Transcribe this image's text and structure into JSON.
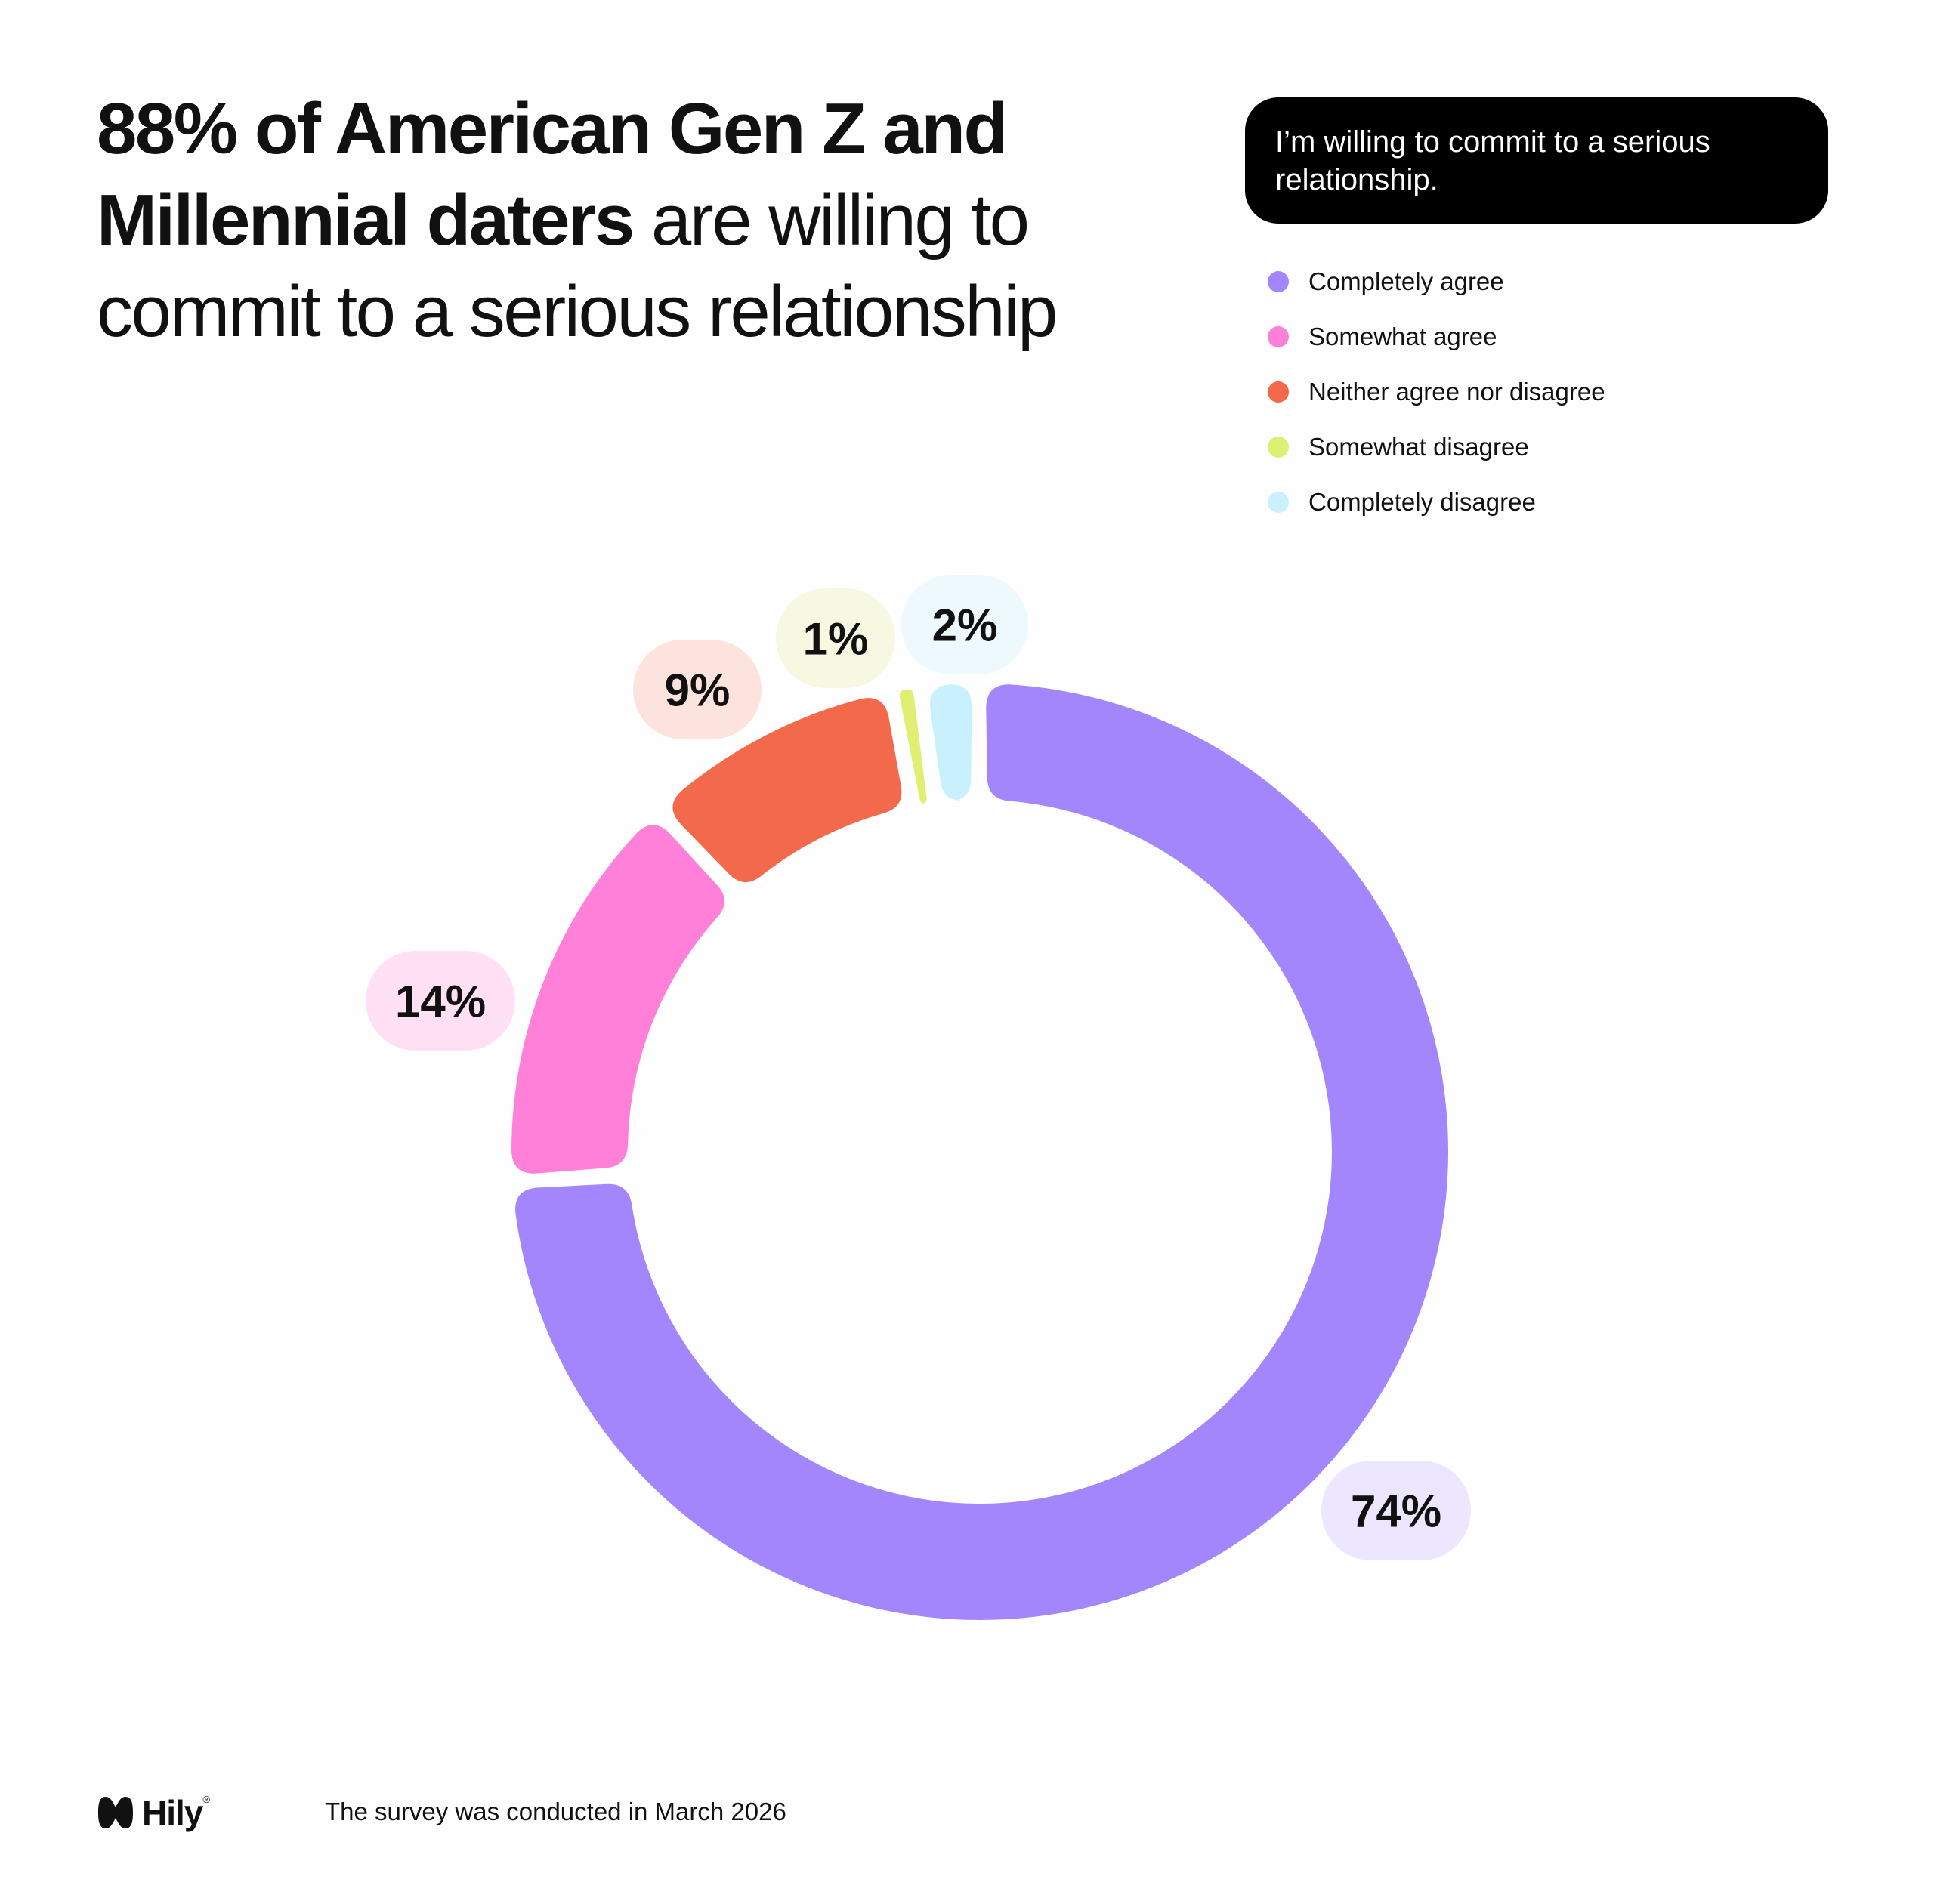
{
  "headline": {
    "strong": "88% of American Gen Z and Millennial daters",
    "rest": " are willing to commit to a serious relationship"
  },
  "question": "I’m willing to commit to a serious relationship.",
  "brand": {
    "name": "Hily",
    "registered": "®"
  },
  "footnote": "The survey was conducted in March 2026",
  "chart_data": {
    "type": "pie",
    "variant": "donut",
    "title": "I’m willing to commit to a serious relationship.",
    "legend_position": "top-right",
    "slices": [
      {
        "label": "Completely agree",
        "value": 74,
        "display": "74%",
        "color": "#a385fc",
        "pill": "#ece6fe"
      },
      {
        "label": "Somewhat agree",
        "value": 14,
        "display": "14%",
        "color": "#ff80d8",
        "pill": "#ffe0f4"
      },
      {
        "label": "Neither agree nor disagree",
        "value": 9,
        "display": "9%",
        "color": "#f26a4b",
        "pill": "#fce3de"
      },
      {
        "label": "Somewhat disagree",
        "value": 1,
        "display": "1%",
        "color": "#dfef72",
        "pill": "#f6f8e2"
      },
      {
        "label": "Completely disagree",
        "value": 2,
        "display": "2%",
        "color": "#c9f1fd",
        "pill": "#eef9fe"
      }
    ]
  }
}
